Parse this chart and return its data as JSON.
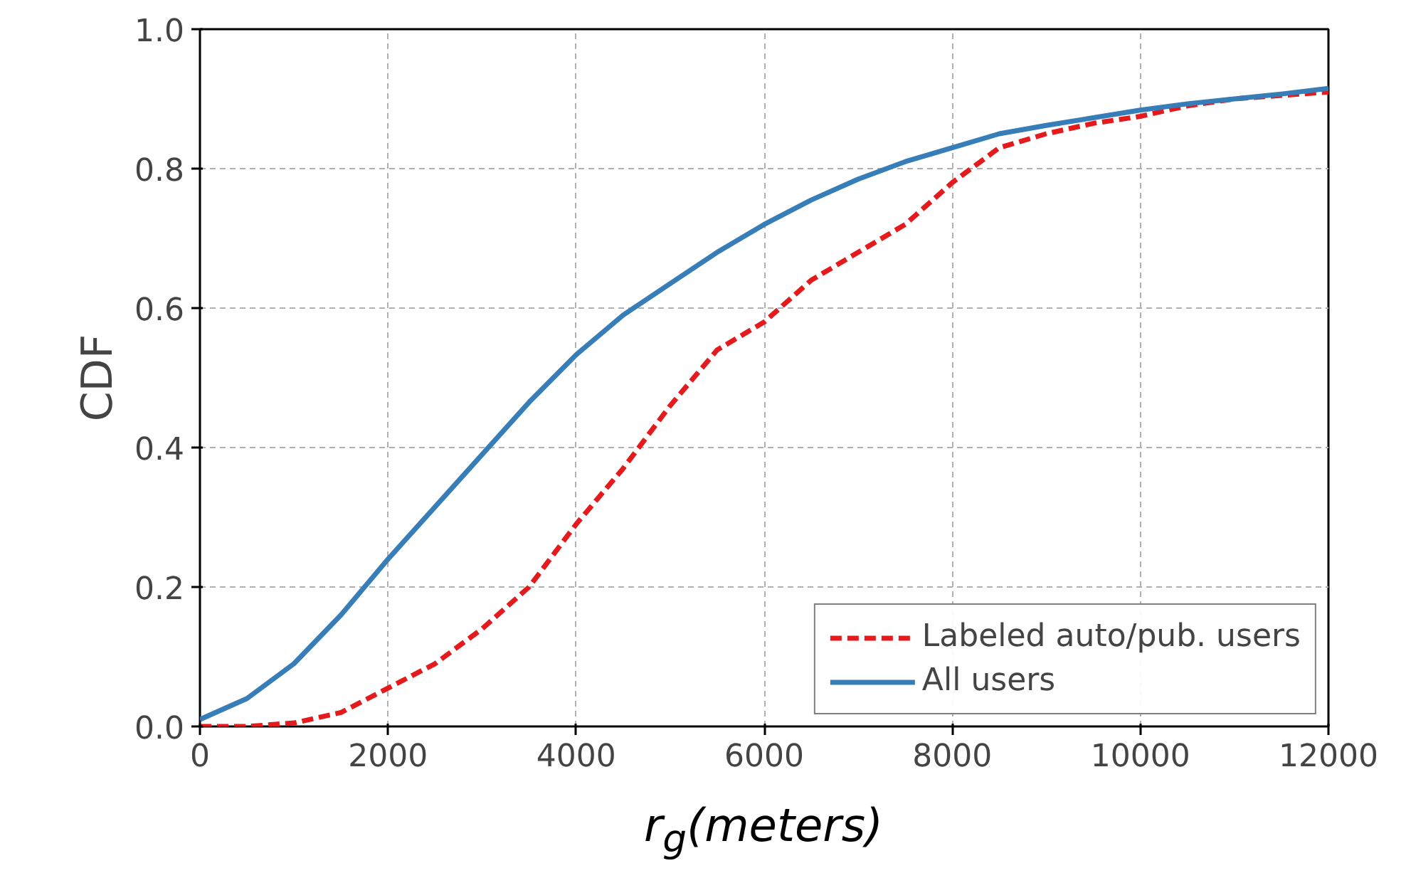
{
  "chart_data": {
    "type": "line",
    "xlabel": "r$_{g}$(meters)",
    "ylabel": "CDF",
    "x": [
      0,
      500,
      1000,
      1500,
      2000,
      2500,
      3000,
      3500,
      4000,
      4500,
      5000,
      5500,
      6000,
      6500,
      7000,
      7500,
      8000,
      8500,
      9000,
      9500,
      10000,
      10500,
      11000,
      11500,
      12000
    ],
    "series": [
      {
        "name": "Labeled auto/pub. users",
        "color": "#e41a1c",
        "line_style": "dashed",
        "values": [
          0,
          0,
          0.005,
          0.02,
          0.055,
          0.09,
          0.14,
          0.2,
          0.29,
          0.37,
          0.46,
          0.54,
          0.58,
          0.64,
          0.68,
          0.72,
          0.78,
          0.83,
          0.85,
          0.865,
          0.875,
          0.89,
          0.9,
          0.905,
          0.91
        ]
      },
      {
        "name": "All users",
        "color": "#377eb8",
        "line_style": "solid",
        "values": [
          0.01,
          0.04,
          0.09,
          0.16,
          0.24,
          0.315,
          0.39,
          0.465,
          0.533,
          0.59,
          0.635,
          0.68,
          0.72,
          0.755,
          0.785,
          0.81,
          0.83,
          0.85,
          0.862,
          0.873,
          0.884,
          0.893,
          0.9,
          0.907,
          0.915
        ]
      }
    ],
    "xlim": [
      0,
      12000
    ],
    "ylim": [
      0,
      1.0
    ],
    "xticks": [
      0,
      2000,
      4000,
      6000,
      8000,
      10000,
      12000
    ],
    "yticks": [
      {
        "value": 0,
        "label": "0.0"
      },
      {
        "value": 0.2,
        "label": "0.2"
      },
      {
        "value": 0.4,
        "label": "0.4"
      },
      {
        "value": 0.6,
        "label": "0.6"
      },
      {
        "value": 0.8,
        "label": "0.8"
      },
      {
        "value": 1.0,
        "label": "1.0"
      }
    ],
    "grid": true,
    "legend": "bottom right",
    "marker": "none"
  }
}
